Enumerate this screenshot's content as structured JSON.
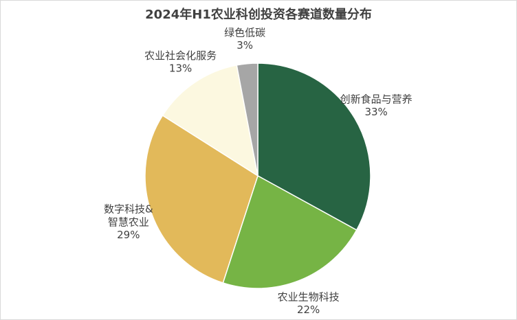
{
  "chart_data": {
    "type": "pie",
    "title": "2024年H1农业科创投资各赛道数量分布",
    "categories": [
      "创新食品与营养",
      "农业生物科技",
      "数字科技&\n智慧农业",
      "农业社会化服务",
      "绿色低碳"
    ],
    "values": [
      33,
      22,
      29,
      13,
      3
    ],
    "value_labels": [
      "33%",
      "22%",
      "29%",
      "13%",
      "3%"
    ],
    "colors": [
      "#276443",
      "#76b445",
      "#e2b95a",
      "#fcf8e0",
      "#a6a6a6"
    ]
  }
}
